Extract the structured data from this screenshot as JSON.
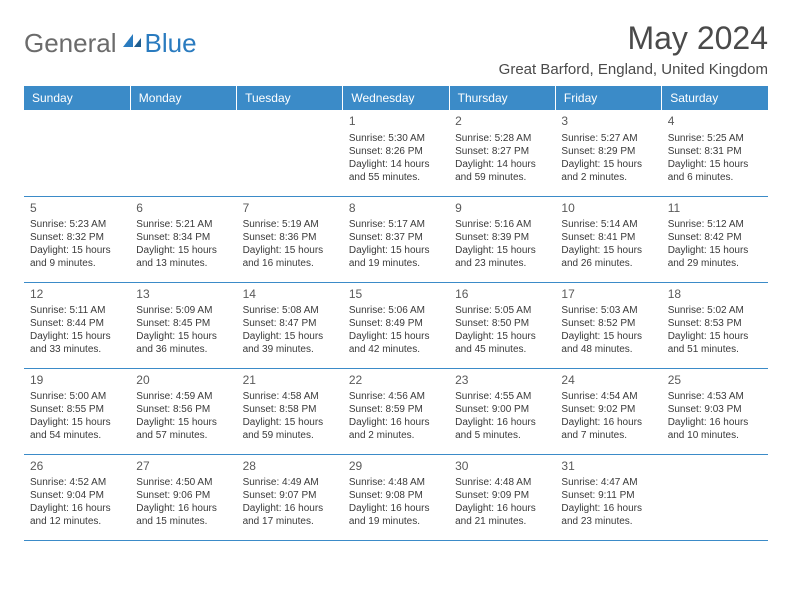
{
  "brand": {
    "part1": "General",
    "part2": "Blue"
  },
  "title": "May 2024",
  "location": "Great Barford, England, United Kingdom",
  "colors": {
    "header_bg": "#3b8bc8",
    "header_text": "#ffffff",
    "brand_gray": "#6b6b6b",
    "brand_blue": "#2a7bbf",
    "text": "#3a3a3a",
    "rule": "#3b8bc8"
  },
  "dayHeaders": [
    "Sunday",
    "Monday",
    "Tuesday",
    "Wednesday",
    "Thursday",
    "Friday",
    "Saturday"
  ],
  "weeks": [
    [
      null,
      null,
      null,
      {
        "n": "1",
        "sr": "Sunrise: 5:30 AM",
        "ss": "Sunset: 8:26 PM",
        "dl": "Daylight: 14 hours and 55 minutes."
      },
      {
        "n": "2",
        "sr": "Sunrise: 5:28 AM",
        "ss": "Sunset: 8:27 PM",
        "dl": "Daylight: 14 hours and 59 minutes."
      },
      {
        "n": "3",
        "sr": "Sunrise: 5:27 AM",
        "ss": "Sunset: 8:29 PM",
        "dl": "Daylight: 15 hours and 2 minutes."
      },
      {
        "n": "4",
        "sr": "Sunrise: 5:25 AM",
        "ss": "Sunset: 8:31 PM",
        "dl": "Daylight: 15 hours and 6 minutes."
      }
    ],
    [
      {
        "n": "5",
        "sr": "Sunrise: 5:23 AM",
        "ss": "Sunset: 8:32 PM",
        "dl": "Daylight: 15 hours and 9 minutes."
      },
      {
        "n": "6",
        "sr": "Sunrise: 5:21 AM",
        "ss": "Sunset: 8:34 PM",
        "dl": "Daylight: 15 hours and 13 minutes."
      },
      {
        "n": "7",
        "sr": "Sunrise: 5:19 AM",
        "ss": "Sunset: 8:36 PM",
        "dl": "Daylight: 15 hours and 16 minutes."
      },
      {
        "n": "8",
        "sr": "Sunrise: 5:17 AM",
        "ss": "Sunset: 8:37 PM",
        "dl": "Daylight: 15 hours and 19 minutes."
      },
      {
        "n": "9",
        "sr": "Sunrise: 5:16 AM",
        "ss": "Sunset: 8:39 PM",
        "dl": "Daylight: 15 hours and 23 minutes."
      },
      {
        "n": "10",
        "sr": "Sunrise: 5:14 AM",
        "ss": "Sunset: 8:41 PM",
        "dl": "Daylight: 15 hours and 26 minutes."
      },
      {
        "n": "11",
        "sr": "Sunrise: 5:12 AM",
        "ss": "Sunset: 8:42 PM",
        "dl": "Daylight: 15 hours and 29 minutes."
      }
    ],
    [
      {
        "n": "12",
        "sr": "Sunrise: 5:11 AM",
        "ss": "Sunset: 8:44 PM",
        "dl": "Daylight: 15 hours and 33 minutes."
      },
      {
        "n": "13",
        "sr": "Sunrise: 5:09 AM",
        "ss": "Sunset: 8:45 PM",
        "dl": "Daylight: 15 hours and 36 minutes."
      },
      {
        "n": "14",
        "sr": "Sunrise: 5:08 AM",
        "ss": "Sunset: 8:47 PM",
        "dl": "Daylight: 15 hours and 39 minutes."
      },
      {
        "n": "15",
        "sr": "Sunrise: 5:06 AM",
        "ss": "Sunset: 8:49 PM",
        "dl": "Daylight: 15 hours and 42 minutes."
      },
      {
        "n": "16",
        "sr": "Sunrise: 5:05 AM",
        "ss": "Sunset: 8:50 PM",
        "dl": "Daylight: 15 hours and 45 minutes."
      },
      {
        "n": "17",
        "sr": "Sunrise: 5:03 AM",
        "ss": "Sunset: 8:52 PM",
        "dl": "Daylight: 15 hours and 48 minutes."
      },
      {
        "n": "18",
        "sr": "Sunrise: 5:02 AM",
        "ss": "Sunset: 8:53 PM",
        "dl": "Daylight: 15 hours and 51 minutes."
      }
    ],
    [
      {
        "n": "19",
        "sr": "Sunrise: 5:00 AM",
        "ss": "Sunset: 8:55 PM",
        "dl": "Daylight: 15 hours and 54 minutes."
      },
      {
        "n": "20",
        "sr": "Sunrise: 4:59 AM",
        "ss": "Sunset: 8:56 PM",
        "dl": "Daylight: 15 hours and 57 minutes."
      },
      {
        "n": "21",
        "sr": "Sunrise: 4:58 AM",
        "ss": "Sunset: 8:58 PM",
        "dl": "Daylight: 15 hours and 59 minutes."
      },
      {
        "n": "22",
        "sr": "Sunrise: 4:56 AM",
        "ss": "Sunset: 8:59 PM",
        "dl": "Daylight: 16 hours and 2 minutes."
      },
      {
        "n": "23",
        "sr": "Sunrise: 4:55 AM",
        "ss": "Sunset: 9:00 PM",
        "dl": "Daylight: 16 hours and 5 minutes."
      },
      {
        "n": "24",
        "sr": "Sunrise: 4:54 AM",
        "ss": "Sunset: 9:02 PM",
        "dl": "Daylight: 16 hours and 7 minutes."
      },
      {
        "n": "25",
        "sr": "Sunrise: 4:53 AM",
        "ss": "Sunset: 9:03 PM",
        "dl": "Daylight: 16 hours and 10 minutes."
      }
    ],
    [
      {
        "n": "26",
        "sr": "Sunrise: 4:52 AM",
        "ss": "Sunset: 9:04 PM",
        "dl": "Daylight: 16 hours and 12 minutes."
      },
      {
        "n": "27",
        "sr": "Sunrise: 4:50 AM",
        "ss": "Sunset: 9:06 PM",
        "dl": "Daylight: 16 hours and 15 minutes."
      },
      {
        "n": "28",
        "sr": "Sunrise: 4:49 AM",
        "ss": "Sunset: 9:07 PM",
        "dl": "Daylight: 16 hours and 17 minutes."
      },
      {
        "n": "29",
        "sr": "Sunrise: 4:48 AM",
        "ss": "Sunset: 9:08 PM",
        "dl": "Daylight: 16 hours and 19 minutes."
      },
      {
        "n": "30",
        "sr": "Sunrise: 4:48 AM",
        "ss": "Sunset: 9:09 PM",
        "dl": "Daylight: 16 hours and 21 minutes."
      },
      {
        "n": "31",
        "sr": "Sunrise: 4:47 AM",
        "ss": "Sunset: 9:11 PM",
        "dl": "Daylight: 16 hours and 23 minutes."
      },
      null
    ]
  ]
}
